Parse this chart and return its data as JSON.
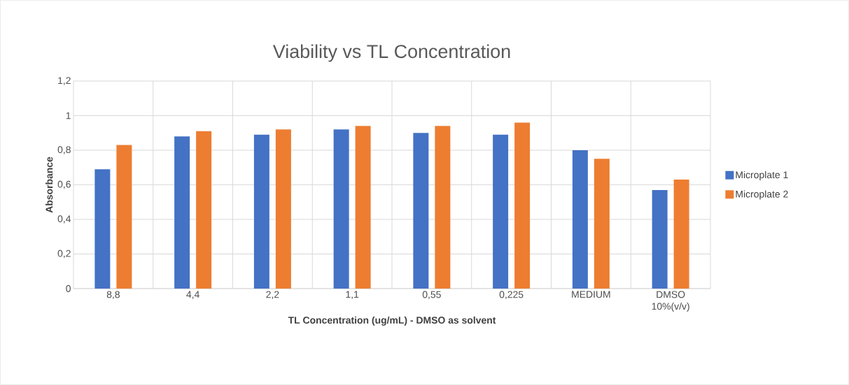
{
  "chart_data": {
    "type": "bar",
    "title": "Viability vs TL Concentration",
    "xlabel": "TL Concentration (ug/mL) - DMSO as solvent",
    "ylabel": "Absorbance",
    "categories": [
      "8,8",
      "4,4",
      "2,2",
      "1,1",
      "0,55",
      "0,225",
      "MEDIUM",
      "DMSO 10%(v/v)"
    ],
    "series": [
      {
        "name": "Microplate 1",
        "color": "#4472c4",
        "values": [
          0.69,
          0.88,
          0.89,
          0.92,
          0.9,
          0.89,
          0.8,
          0.57
        ]
      },
      {
        "name": "Microplate 2",
        "color": "#ed7d31",
        "values": [
          0.83,
          0.91,
          0.92,
          0.94,
          0.94,
          0.96,
          0.75,
          0.63
        ]
      }
    ],
    "ylim": [
      0,
      1.2
    ],
    "yticks": [
      0,
      {
        "value": 0.2,
        "label": "0,2"
      },
      {
        "value": 0.4,
        "label": "0,4"
      },
      {
        "value": 0.6,
        "label": "0,6"
      },
      {
        "value": 0.8,
        "label": "0,8"
      },
      1,
      {
        "value": 1.2,
        "label": "1,2"
      }
    ],
    "grid": true,
    "legend": "right"
  }
}
